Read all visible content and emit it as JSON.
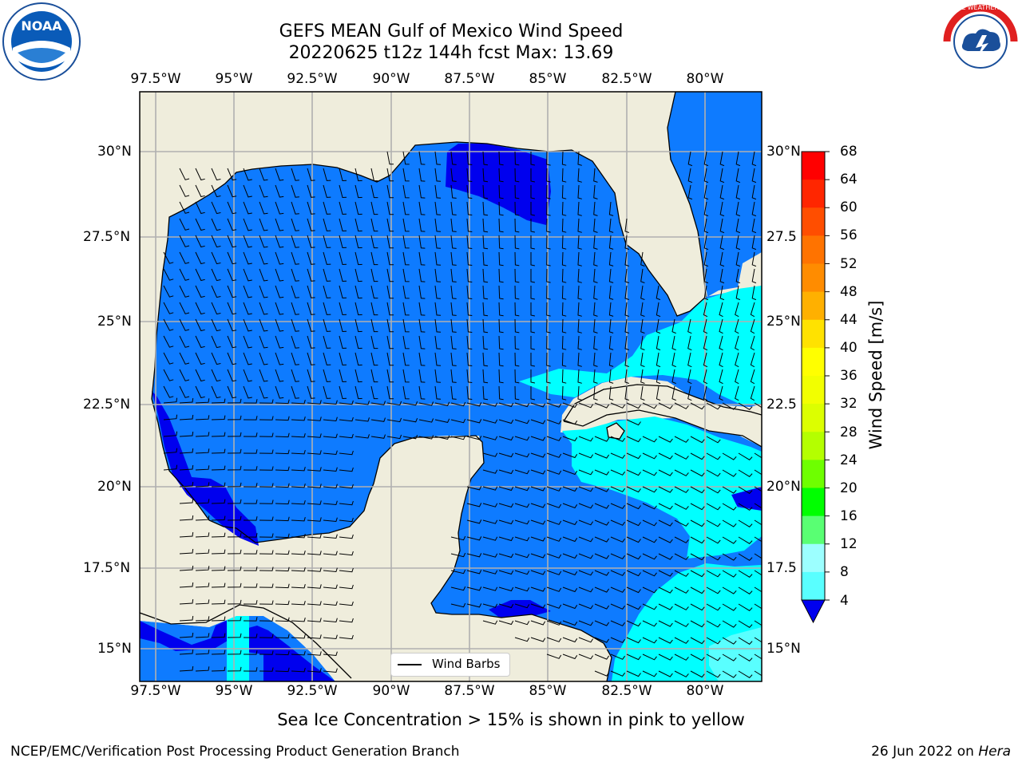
{
  "header": {
    "title_line1": "GEFS MEAN Gulf of Mexico Wind Speed",
    "title_line2": "20220625 t12z 144h fcst   Max: 13.69"
  },
  "map": {
    "lon_labels": [
      "97.5°W",
      "95°W",
      "92.5°W",
      "90°W",
      "87.5°W",
      "85°W",
      "82.5°W",
      "80°W"
    ],
    "lat_labels_left": [
      "30°N",
      "27.5°N",
      "25°N",
      "22.5°N",
      "20°N",
      "17.5°N",
      "15°N"
    ],
    "lat_labels_right": [
      "30°N",
      "27.5",
      "25°N",
      "22.5",
      "20°N",
      "17.5",
      "15°N"
    ],
    "legend_label": "Wind Barbs",
    "land_color": "#efeddc",
    "ocean_color_4_8": "#0e7bff",
    "ocean_color_0_4": "#0000ee",
    "ocean_color_8_12": "#00ffff"
  },
  "colorbar": {
    "title": "Wind Speed [m/s]",
    "tick_labels": [
      "68",
      "64",
      "60",
      "56",
      "52",
      "48",
      "44",
      "40",
      "36",
      "32",
      "28",
      "24",
      "20",
      "16",
      "12",
      "8",
      "4"
    ],
    "colors": [
      "#ff0000",
      "#ff2600",
      "#ff4e00",
      "#ff7300",
      "#ff8c00",
      "#ffb000",
      "#ffe200",
      "#ffff00",
      "#f2ff00",
      "#dcff00",
      "#b4ff00",
      "#6eff00",
      "#00ff00",
      "#59ff73",
      "#9cffff",
      "#59ffff",
      "#00ffff",
      "#0080ff"
    ],
    "under_color": "#0000ee"
  },
  "notes": {
    "sea_ice": "Sea Ice Concentration > 15% is shown in pink to yellow",
    "branch": "NCEP/EMC/Verification Post Processing Product Generation Branch",
    "date_text": "26 Jun 2022 on ",
    "host": "Hera"
  },
  "logos": {
    "noaa_text": "NOAA",
    "nws_text": "NATIONAL WEATHER SERVICE"
  }
}
